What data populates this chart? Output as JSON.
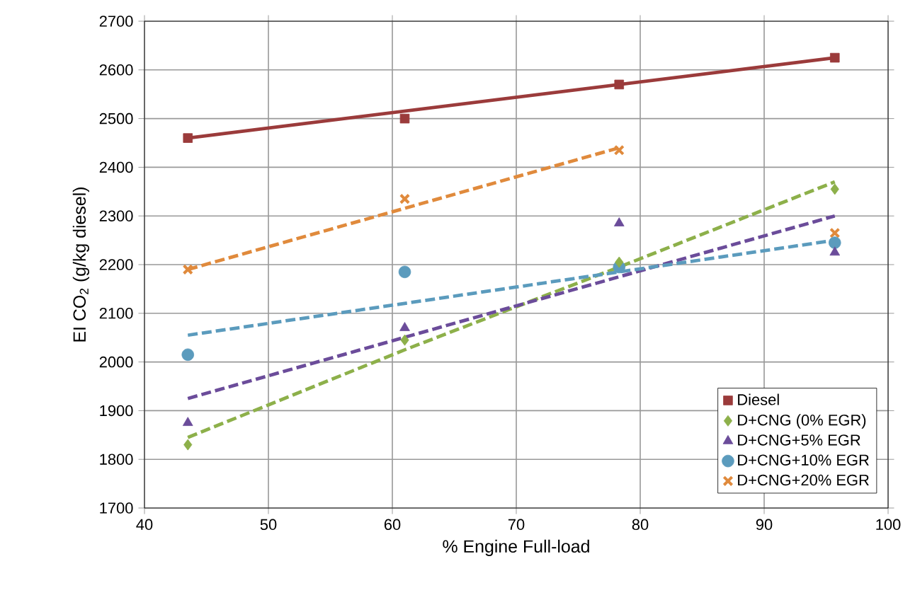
{
  "chart_data": {
    "type": "scatter",
    "xlabel": "% Engine Full-load",
    "ylabel": "EI CO$_{2}$  (g/kg diesel)",
    "xlim": [
      40,
      100
    ],
    "xticks": [
      40,
      50,
      60,
      70,
      80,
      90,
      100
    ],
    "ylim": [
      1700,
      2700
    ],
    "yticks": [
      1700,
      1800,
      1900,
      2000,
      2100,
      2200,
      2300,
      2400,
      2500,
      2600,
      2700
    ],
    "grid": true,
    "legend": "bottom right",
    "series": [
      {
        "name": "Diesel",
        "color": "#9b3b3b",
        "marker": "square",
        "x": [
          43.5,
          61,
          78.3,
          95.7
        ],
        "values": [
          2460,
          2500,
          2570,
          2625
        ]
      },
      {
        "name": "D+CNG (0% EGR)",
        "color": "#8db04a",
        "marker": "diamond",
        "x": [
          43.5,
          61,
          78.3,
          95.7
        ],
        "values": [
          1830,
          2045,
          2205,
          2355
        ]
      },
      {
        "name": "D+CNG+5% EGR",
        "color": "#6b4c9a",
        "marker": "triangle",
        "x": [
          43.5,
          61,
          78.3,
          95.7
        ],
        "values": [
          1875,
          2070,
          2285,
          2225
        ]
      },
      {
        "name": "D+CNG+10% EGR",
        "color": "#5b9bbd",
        "marker": "circle",
        "x": [
          43.5,
          61,
          78.3,
          95.7
        ],
        "values": [
          2015,
          2185,
          2195,
          2245
        ]
      },
      {
        "name": "D+CNG+20% EGR",
        "color": "#e08a3c",
        "marker": "cross",
        "x": [
          43.5,
          61,
          78.3,
          95.7
        ],
        "values": [
          2190,
          2335,
          2435,
          2265
        ]
      },
      {
        "type": "line",
        "color": "#9b3b3b",
        "line_style": "solid",
        "x": [
          43.5,
          95.7
        ],
        "values": [
          2460,
          2625
        ]
      },
      {
        "type": "line",
        "color": "#8db04a",
        "line_style": "dashed",
        "x": [
          43.5,
          61,
          78.3,
          95.7
        ],
        "values": [
          1845,
          2025,
          2195,
          2370
        ]
      },
      {
        "type": "line",
        "color": "#6b4c9a",
        "line_style": "dashed",
        "x": [
          43.5,
          95.7
        ],
        "values": [
          1925,
          2300
        ]
      },
      {
        "type": "line",
        "color": "#5b9bbd",
        "line_style": "dashed",
        "x": [
          43.5,
          95.7
        ],
        "values": [
          2055,
          2250
        ]
      },
      {
        "type": "line",
        "color": "#e08a3c",
        "line_style": "dashed",
        "x": [
          43.5,
          78.3
        ],
        "values": [
          2190,
          2440
        ]
      }
    ]
  }
}
